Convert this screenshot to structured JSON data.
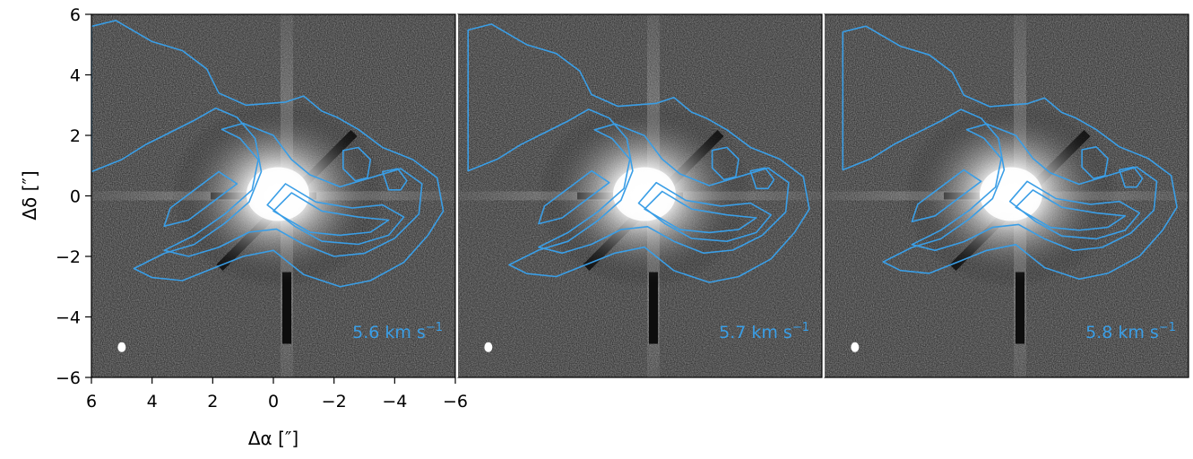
{
  "chart_data": {
    "type": "image-contour",
    "xlabel": "Δα [″]",
    "ylabel": "Δδ [″]",
    "xlim": [
      6,
      -6
    ],
    "ylim": [
      -6,
      6
    ],
    "x_ticks": [
      "6",
      "4",
      "2",
      "0",
      "−2",
      "−4",
      "−6"
    ],
    "y_ticks": [
      "6",
      "4",
      "2",
      "0",
      "−2",
      "−4",
      "−6"
    ],
    "contour_color": "#3a9ee6",
    "background": "grayscale scattered-light image",
    "panels": [
      {
        "velocity_label": "5.6 km s",
        "exponent": "−1"
      },
      {
        "velocity_label": "5.7 km s",
        "exponent": "−1"
      },
      {
        "velocity_label": "5.8 km s",
        "exponent": "−1"
      }
    ]
  }
}
